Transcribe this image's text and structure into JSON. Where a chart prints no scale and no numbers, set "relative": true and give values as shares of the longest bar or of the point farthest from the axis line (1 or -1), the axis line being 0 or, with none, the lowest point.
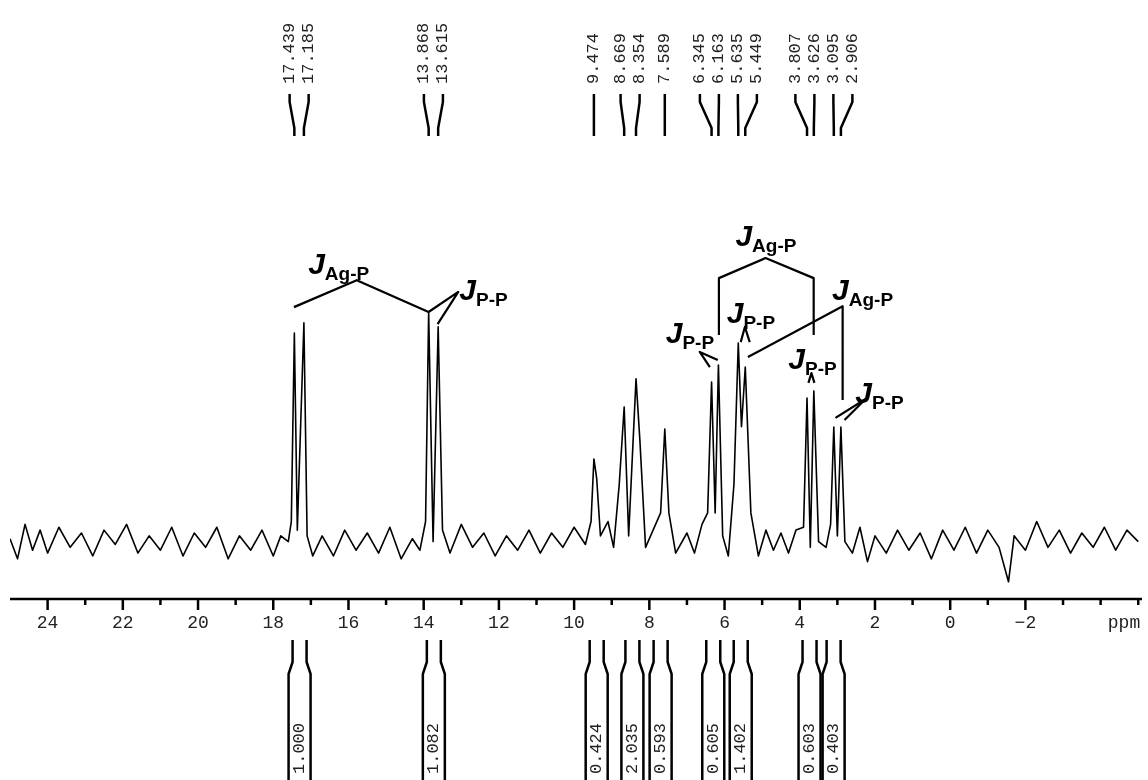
{
  "chart_data": {
    "type": "line",
    "relative": true,
    "color": "#000000",
    "marker": "none",
    "xlabel": "ppm",
    "xlim": [
      25.0,
      -5.1
    ],
    "xticks": [
      24,
      {
        "value": 23,
        "label": null
      },
      22,
      {
        "value": 21,
        "label": null
      },
      20,
      {
        "value": 19,
        "label": null
      },
      18,
      {
        "value": 17,
        "label": null
      },
      16,
      {
        "value": 15,
        "label": null
      },
      14,
      {
        "value": 13,
        "label": null
      },
      12,
      {
        "value": 11,
        "label": null
      },
      10,
      {
        "value": 9,
        "label": null
      },
      8,
      {
        "value": 7,
        "label": null
      },
      6,
      {
        "value": 5,
        "label": null
      },
      4,
      {
        "value": 3,
        "label": null
      },
      2,
      {
        "value": 1,
        "label": null
      },
      0,
      {
        "value": -1,
        "label": null
      },
      {
        "value": -2,
        "label": "−2"
      },
      {
        "value": -3,
        "label": null
      },
      {
        "value": -4,
        "label": null
      },
      {
        "value": -5,
        "label": null
      }
    ],
    "x": [
      25.0,
      24.8,
      24.6,
      24.4,
      24.2,
      24.0,
      23.7,
      23.4,
      23.1,
      22.8,
      22.5,
      22.2,
      21.9,
      21.6,
      21.3,
      21.0,
      20.7,
      20.4,
      20.1,
      19.8,
      19.5,
      19.2,
      18.9,
      18.6,
      18.3,
      18.0,
      17.8,
      17.6,
      17.52,
      17.439,
      17.36,
      17.185,
      17.1,
      16.95,
      16.7,
      16.4,
      16.1,
      15.8,
      15.5,
      15.2,
      14.9,
      14.6,
      14.3,
      14.1,
      13.95,
      13.868,
      13.75,
      13.615,
      13.5,
      13.3,
      13.0,
      12.7,
      12.4,
      12.1,
      11.8,
      11.5,
      11.2,
      10.9,
      10.6,
      10.3,
      10.0,
      9.7,
      9.55,
      9.474,
      9.4,
      9.3,
      9.1,
      8.95,
      8.8,
      8.669,
      8.55,
      8.45,
      8.354,
      8.25,
      8.1,
      7.9,
      7.7,
      7.589,
      7.48,
      7.3,
      7.0,
      6.8,
      6.6,
      6.45,
      6.345,
      6.25,
      6.163,
      6.05,
      5.9,
      5.75,
      5.635,
      5.55,
      5.449,
      5.3,
      5.1,
      4.9,
      4.7,
      4.5,
      4.3,
      4.1,
      3.9,
      3.807,
      3.72,
      3.626,
      3.5,
      3.3,
      3.18,
      3.095,
      3.0,
      2.906,
      2.8,
      2.6,
      2.4,
      2.2,
      2.0,
      1.7,
      1.4,
      1.1,
      0.8,
      0.5,
      0.2,
      -0.1,
      -0.4,
      -0.7,
      -1.0,
      -1.3,
      -1.55,
      -1.7,
      -2.0,
      -2.3,
      -2.6,
      -2.9,
      -3.2,
      -3.5,
      -3.8,
      -4.1,
      -4.4,
      -4.7,
      -5.0
    ],
    "values": [
      0.21,
      0.14,
      0.26,
      0.17,
      0.24,
      0.16,
      0.25,
      0.18,
      0.23,
      0.15,
      0.24,
      0.19,
      0.26,
      0.16,
      0.22,
      0.17,
      0.25,
      0.15,
      0.23,
      0.18,
      0.25,
      0.14,
      0.22,
      0.17,
      0.24,
      0.15,
      0.22,
      0.2,
      0.27,
      0.927,
      0.24,
      0.962,
      0.22,
      0.15,
      0.22,
      0.15,
      0.24,
      0.17,
      0.23,
      0.16,
      0.25,
      0.14,
      0.21,
      0.17,
      0.27,
      1,
      0.2,
      0.948,
      0.24,
      0.16,
      0.26,
      0.18,
      0.23,
      0.15,
      0.22,
      0.17,
      0.24,
      0.16,
      0.23,
      0.18,
      0.25,
      0.19,
      0.27,
      0.488,
      0.42,
      0.22,
      0.27,
      0.18,
      0.4,
      0.669,
      0.22,
      0.5,
      0.767,
      0.55,
      0.18,
      0.24,
      0.3,
      0.592,
      0.3,
      0.16,
      0.23,
      0.16,
      0.26,
      0.3,
      0.756,
      0.3,
      0.815,
      0.22,
      0.15,
      0.4,
      0.892,
      0.6,
      0.808,
      0.3,
      0.15,
      0.24,
      0.17,
      0.23,
      0.16,
      0.24,
      0.25,
      0.7,
      0.18,
      0.725,
      0.2,
      0.18,
      0.26,
      0.599,
      0.22,
      0.599,
      0.2,
      0.16,
      0.25,
      0.13,
      0.22,
      0.16,
      0.24,
      0.17,
      0.23,
      0.14,
      0.24,
      0.17,
      0.25,
      0.16,
      0.24,
      0.18,
      0.06,
      0.22,
      0.17,
      0.27,
      0.18,
      0.24,
      0.16,
      0.23,
      0.18,
      0.25,
      0.17,
      0.24,
      0.2
    ],
    "annotations": [
      "17.439",
      "17.185",
      "13.868",
      "13.615",
      "9.474",
      "8.669",
      "8.354",
      "7.589",
      "6.345",
      "6.163",
      "5.635",
      "5.449",
      "3.807",
      "3.626",
      "3.095",
      "2.906",
      "1.000",
      "1.082",
      "0.424",
      "2.035",
      "0.593",
      "0.605",
      "1.402",
      "0.603",
      "0.403",
      "J$_{Ag-P}$",
      "J$_{P-P}$",
      "J$_{Ag-P}$",
      "J$_{Ag-P}$",
      "J$_{P-P}$",
      "J$_{P-P}$",
      "J$_{P-P}$",
      "J$_{P-P}$"
    ]
  }
}
